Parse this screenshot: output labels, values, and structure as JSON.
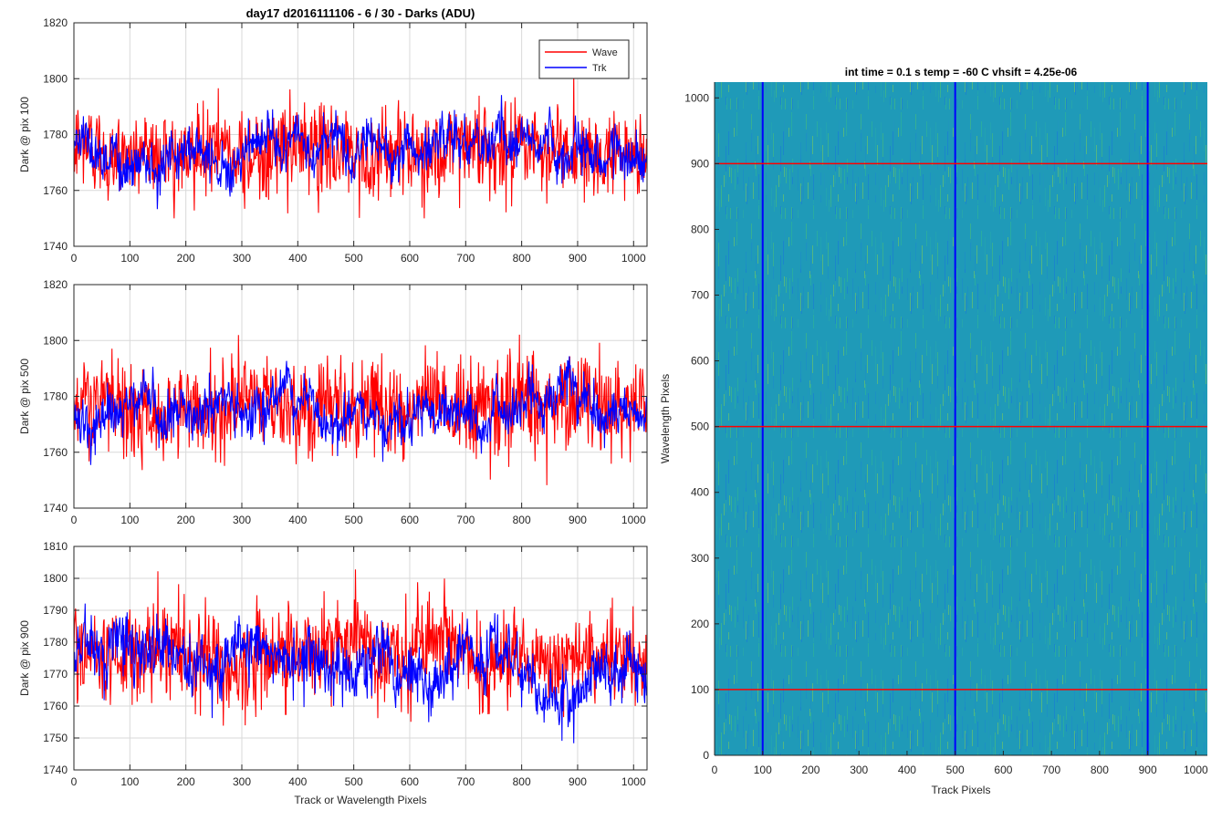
{
  "figure_title": "day17 d2016111106 - 6 / 30 - Darks (ADU)",
  "colors": {
    "wave": "#ff0000",
    "trk": "#0000ff",
    "grid": "#d9d9d9",
    "axis": "#262626"
  },
  "chart_data": [
    {
      "type": "line",
      "ylabel": "Dark @ pix 100",
      "xlabel": "",
      "xlim": [
        0,
        1024
      ],
      "ylim": [
        1740,
        1820
      ],
      "xticks": [
        0,
        100,
        200,
        300,
        400,
        500,
        600,
        700,
        800,
        900,
        1000
      ],
      "yticks": [
        1740,
        1760,
        1780,
        1800,
        1820
      ],
      "grid": true,
      "legend": {
        "position": "top-right",
        "entries": [
          "Wave",
          "Trk"
        ]
      },
      "series": [
        {
          "name": "Wave",
          "mean": 1774,
          "noise_sd": 9,
          "min": 1750,
          "max": 1811,
          "samples": 1024
        },
        {
          "name": "Trk",
          "mean": 1776,
          "noise_sd": 7,
          "min": 1747,
          "max": 1806,
          "samples": 1024
        }
      ]
    },
    {
      "type": "line",
      "ylabel": "Dark @ pix 500",
      "xlabel": "",
      "xlim": [
        0,
        1024
      ],
      "ylim": [
        1740,
        1820
      ],
      "xticks": [
        0,
        100,
        200,
        300,
        400,
        500,
        600,
        700,
        800,
        900,
        1000
      ],
      "yticks": [
        1740,
        1760,
        1780,
        1800,
        1820
      ],
      "grid": true,
      "series": [
        {
          "name": "Wave",
          "mean": 1776,
          "noise_sd": 9,
          "min": 1747,
          "max": 1815,
          "samples": 1024
        },
        {
          "name": "Trk",
          "mean": 1776,
          "noise_sd": 7,
          "min": 1752,
          "max": 1807,
          "samples": 1024
        }
      ]
    },
    {
      "type": "line",
      "ylabel": "Dark @ pix 900",
      "xlabel": "Track or Wavelength Pixels",
      "xlim": [
        0,
        1024
      ],
      "ylim": [
        1740,
        1810
      ],
      "xticks": [
        0,
        100,
        200,
        300,
        400,
        500,
        600,
        700,
        800,
        900,
        1000
      ],
      "yticks": [
        1740,
        1750,
        1760,
        1770,
        1780,
        1790,
        1800,
        1810
      ],
      "grid": true,
      "series": [
        {
          "name": "Wave",
          "mean": 1777,
          "noise_sd": 8,
          "min": 1748,
          "max": 1809,
          "samples": 1024
        },
        {
          "name": "Trk",
          "mean": 1772,
          "noise_sd": 8,
          "min": 1743,
          "max": 1810,
          "samples": 1024
        }
      ]
    },
    {
      "type": "heatmap",
      "title": "int time = 0.1 s   temp = -60 C   vhsift = 4.25e-06",
      "xlabel": "Track Pixels",
      "ylabel": "Wavelength Pixels",
      "xlim": [
        0,
        1024
      ],
      "ylim": [
        0,
        1024
      ],
      "xticks": [
        0,
        100,
        200,
        300,
        400,
        500,
        600,
        700,
        800,
        900,
        1000
      ],
      "yticks": [
        0,
        100,
        200,
        300,
        400,
        500,
        600,
        700,
        800,
        900,
        1000
      ],
      "colormap": "parula",
      "vertical_lines": {
        "color": "#0000ff",
        "x": [
          100,
          500,
          900
        ]
      },
      "horizontal_lines": {
        "color": "#ff0000",
        "y": [
          100,
          500,
          900
        ]
      }
    }
  ]
}
